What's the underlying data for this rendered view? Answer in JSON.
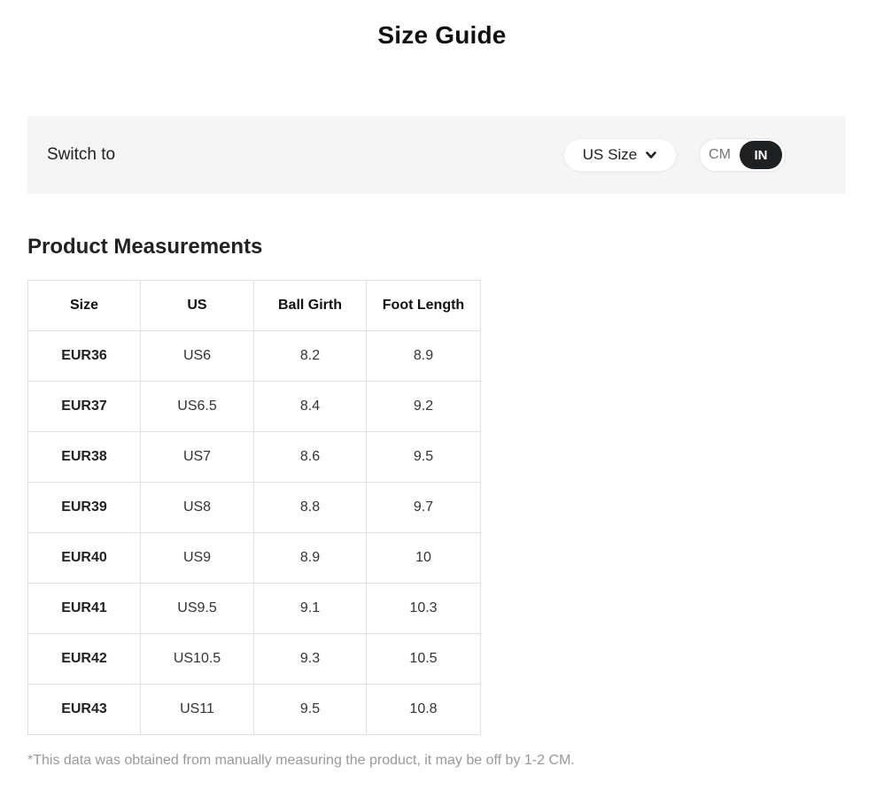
{
  "page": {
    "title": "Size Guide",
    "footnote": "*This data was obtained from manually measuring the product, it may be off by 1-2 CM."
  },
  "switch_bar": {
    "label": "Switch to",
    "size_dropdown": {
      "value": "US Size",
      "icon": "chevron-down-icon"
    },
    "unit_toggle": {
      "options": [
        "CM",
        "IN"
      ],
      "selected": "IN",
      "active_bg": "#1f2021",
      "active_text": "#ffffff"
    }
  },
  "measurements": {
    "heading": "Product Measurements",
    "table": {
      "headers": [
        "Size",
        "US",
        "Ball Girth",
        "Foot Length"
      ],
      "rows": [
        [
          "EUR36",
          "US6",
          "8.2",
          "8.9"
        ],
        [
          "EUR37",
          "US6.5",
          "8.4",
          "9.2"
        ],
        [
          "EUR38",
          "US7",
          "8.6",
          "9.5"
        ],
        [
          "EUR39",
          "US8",
          "8.8",
          "9.7"
        ],
        [
          "EUR40",
          "US9",
          "8.9",
          "10"
        ],
        [
          "EUR41",
          "US9.5",
          "9.1",
          "10.3"
        ],
        [
          "EUR42",
          "US10.5",
          "9.3",
          "10.5"
        ],
        [
          "EUR43",
          "US11",
          "9.5",
          "10.8"
        ]
      ]
    }
  },
  "colors": {
    "bar_bg": "#f5f5f5",
    "table_border": "#e0e0e0",
    "muted_text": "#999999"
  }
}
